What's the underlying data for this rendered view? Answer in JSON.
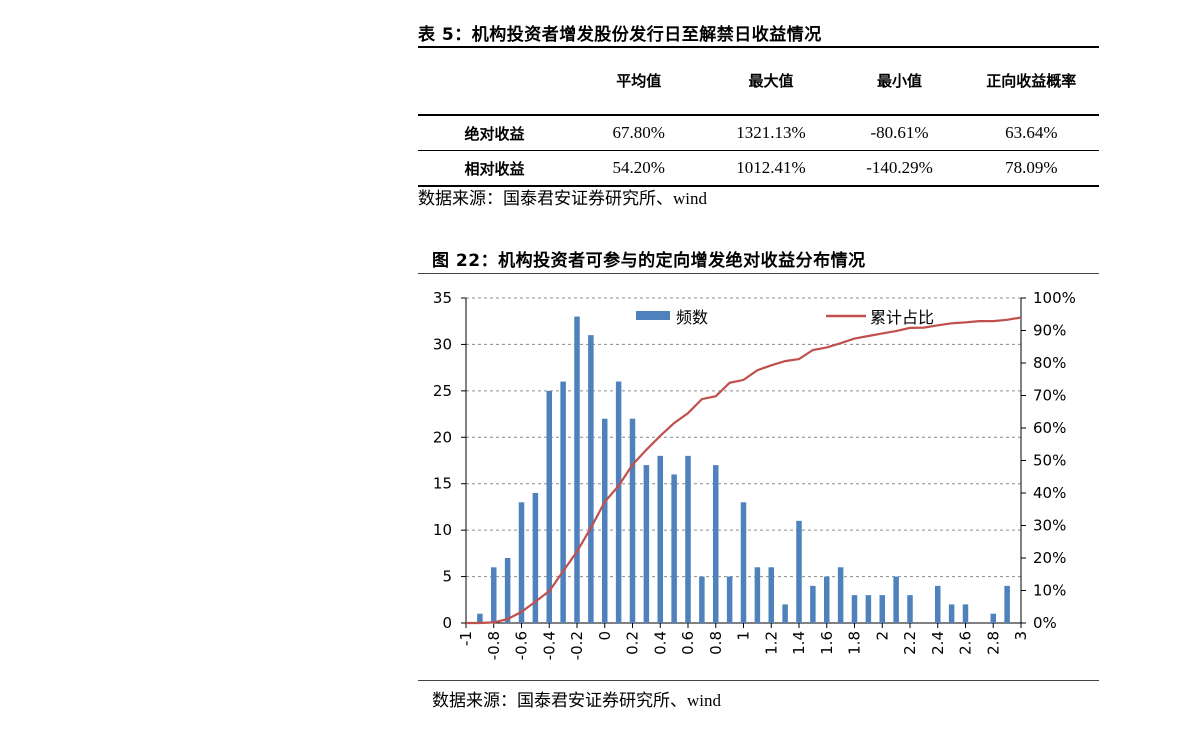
{
  "table": {
    "title": "表 5：机构投资者增发股份发行日至解禁日收益情况",
    "headers": [
      "",
      "平均值",
      "最大值",
      "最小值",
      "正向收益概率"
    ],
    "rows": [
      [
        "绝对收益",
        "67.80%",
        "1321.13%",
        "-80.61%",
        "63.64%"
      ],
      [
        "相对收益",
        "54.20%",
        "1012.41%",
        "-140.29%",
        "78.09%"
      ]
    ],
    "source": "数据来源：国泰君安证券研究所、wind"
  },
  "figure": {
    "title": "图 22：机构投资者可参与的定向增发绝对收益分布情况",
    "source": "数据来源：国泰君安证券研究所、wind"
  },
  "chart_data": {
    "type": "bar",
    "categories": [
      "-1",
      "-0.9",
      "-0.8",
      "-0.7",
      "-0.6",
      "-0.5",
      "-0.4",
      "-0.3",
      "-0.2",
      "-0.1",
      "0",
      "0.1",
      "0.2",
      "0.3",
      "0.4",
      "0.5",
      "0.6",
      "0.7",
      "0.8",
      "0.9",
      "1",
      "1.1",
      "1.2",
      "1.3",
      "1.4",
      "1.5",
      "1.6",
      "1.7",
      "1.8",
      "1.9",
      "2",
      "2.1",
      "2.2",
      "2.3",
      "2.4",
      "2.5",
      "2.6",
      "2.7",
      "2.8",
      "2.9",
      "3"
    ],
    "x_tick_labels": [
      "-1",
      "-0.8",
      "-0.6",
      "-0.4",
      "-0.2",
      "0",
      "0.2",
      "0.4",
      "0.6",
      "0.8",
      "1",
      "1.2",
      "1.4",
      "1.6",
      "1.8",
      "2",
      "2.2",
      "2.4",
      "2.6",
      "2.8",
      "3"
    ],
    "series": [
      {
        "name": "频数",
        "type": "bar",
        "axis": "left",
        "color": "#4f81bd",
        "values": [
          0,
          1,
          6,
          7,
          13,
          14,
          25,
          26,
          33,
          31,
          22,
          26,
          22,
          17,
          18,
          16,
          18,
          5,
          17,
          5,
          13,
          6,
          6,
          2,
          11,
          4,
          5,
          6,
          3,
          3,
          3,
          5,
          3,
          0,
          4,
          2,
          2,
          0,
          1,
          4,
          0
        ]
      },
      {
        "name": "累计占比",
        "type": "line",
        "axis": "right",
        "color": "#c0504d",
        "values": [
          0,
          0,
          0.2,
          1.2,
          3.4,
          6.6,
          9.8,
          15.9,
          22,
          29.3,
          37.3,
          42.2,
          48.7,
          53.3,
          57.6,
          61.5,
          64.6,
          68.9,
          69.8,
          73.9,
          74.8,
          77.8,
          79.3,
          80.6,
          81.2,
          84,
          84.8,
          86.1,
          87.5,
          88.3,
          89.1,
          89.8,
          90.8,
          90.9,
          91.6,
          92.2,
          92.5,
          92.9,
          92.9,
          93.3,
          94
        ]
      }
    ],
    "ylim_left": [
      0,
      35
    ],
    "yticks_left": [
      "0",
      "5",
      "10",
      "15",
      "20",
      "25",
      "30",
      "35"
    ],
    "ylim_right": [
      0,
      100
    ],
    "yticks_right": [
      "0%",
      "10%",
      "20%",
      "30%",
      "40%",
      "50%",
      "60%",
      "70%",
      "80%",
      "90%",
      "100%"
    ],
    "grid": true,
    "legend": "top"
  }
}
